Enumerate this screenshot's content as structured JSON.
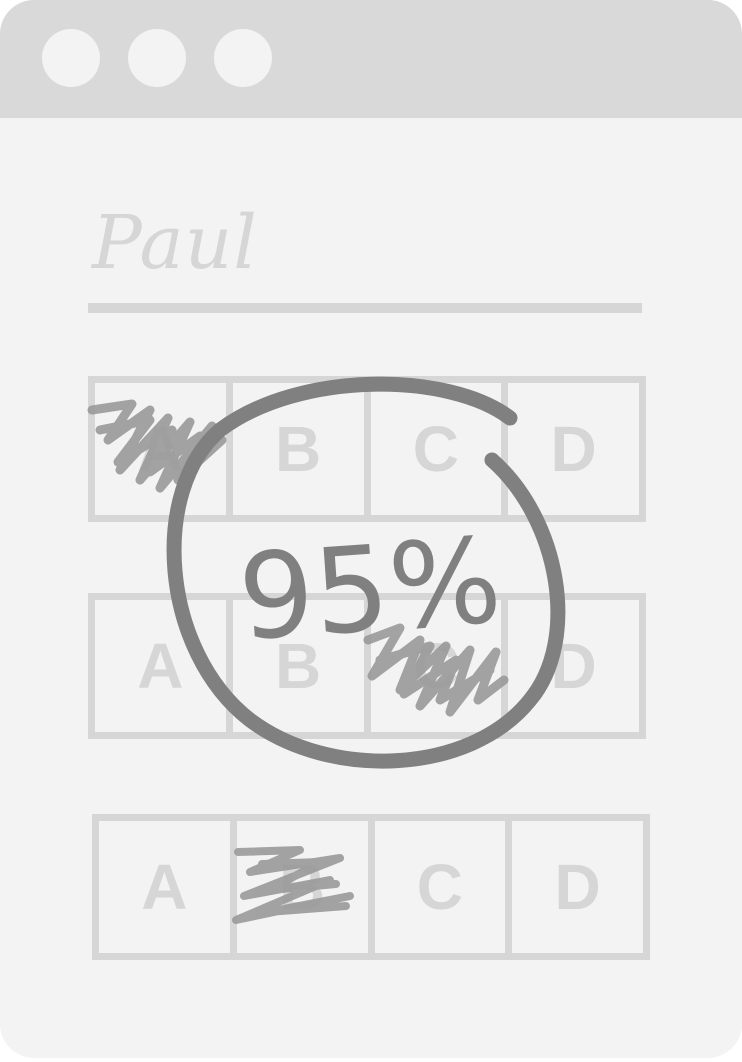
{
  "window": {
    "controls": [
      "close",
      "minimize",
      "maximize"
    ]
  },
  "quiz": {
    "student_name": "Paul",
    "score": "95%",
    "questions": [
      {
        "options": [
          "A",
          "B",
          "C",
          "D"
        ],
        "scribbled": "A"
      },
      {
        "options": [
          "A",
          "B",
          "C",
          "D"
        ],
        "scribbled": "C"
      },
      {
        "options": [
          "A",
          "B",
          "C",
          "D"
        ],
        "scribbled": "B"
      }
    ]
  },
  "colors": {
    "titlebar": "#d9d9d9",
    "page": "#f3f3f3",
    "faint": "#d6d6d6",
    "ink": "#808080",
    "scribble": "#9a9a9a"
  }
}
